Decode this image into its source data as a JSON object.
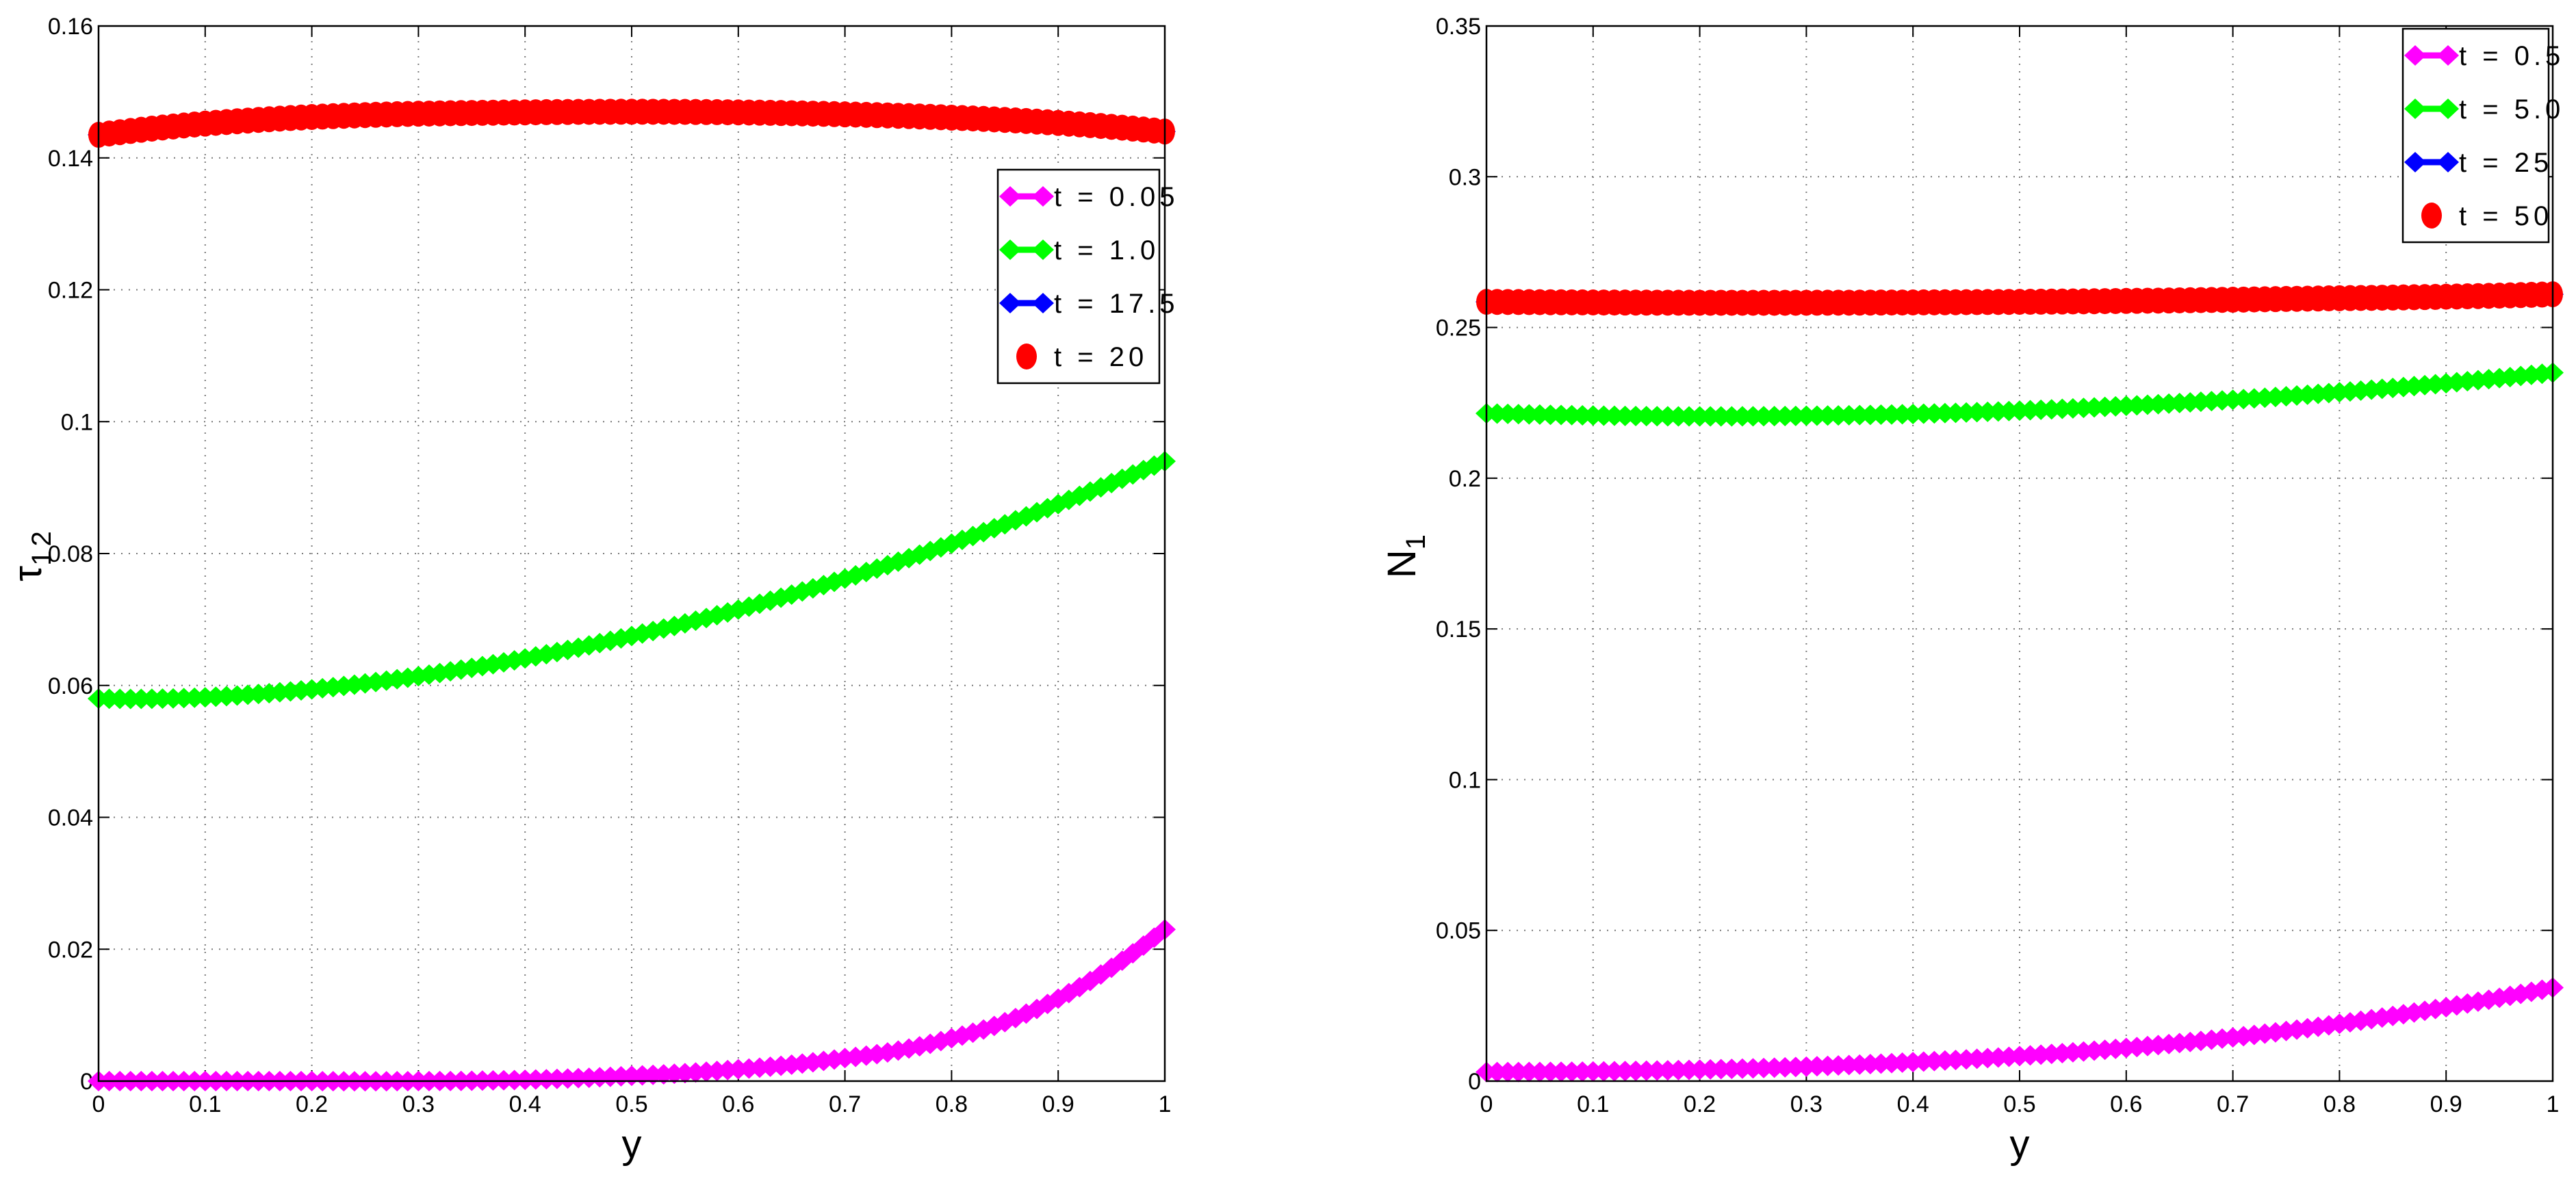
{
  "chart_data": [
    {
      "type": "line",
      "xlabel": "y",
      "ylabel_main": "τ",
      "ylabel_sub": "12",
      "xlim": [
        0,
        1
      ],
      "ylim": [
        0,
        0.16
      ],
      "xticks": [
        0,
        0.1,
        0.2,
        0.3,
        0.4,
        0.5,
        0.6,
        0.7,
        0.8,
        0.9,
        1
      ],
      "xtick_labels": [
        "0",
        "0.1",
        "0.2",
        "0.3",
        "0.4",
        "0.5",
        "0.6",
        "0.7",
        "0.8",
        "0.9",
        "1"
      ],
      "yticks": [
        0,
        0.02,
        0.04,
        0.06,
        0.08,
        0.1,
        0.12,
        0.14,
        0.16
      ],
      "ytick_labels": [
        "0",
        "0.02",
        "0.04",
        "0.06",
        "0.08",
        "0.1",
        "0.12",
        "0.14",
        "0.16"
      ],
      "grid": true,
      "legend_position": "upper-right",
      "x": [
        0,
        0.1,
        0.2,
        0.3,
        0.4,
        0.5,
        0.6,
        0.7,
        0.8,
        0.9,
        1.0
      ],
      "series": [
        {
          "name": "t = 0.05",
          "color": "#ff00ff",
          "marker": "diamond",
          "values": [
            0,
            0,
            0,
            0,
            0.0002,
            0.0008,
            0.0018,
            0.0035,
            0.0065,
            0.0125,
            0.023
          ]
        },
        {
          "name": "t = 1.0",
          "color": "#00ff00",
          "marker": "diamond",
          "values": [
            0.058,
            0.0582,
            0.0594,
            0.0614,
            0.0641,
            0.0675,
            0.0715,
            0.0762,
            0.0815,
            0.0875,
            0.094
          ]
        },
        {
          "name": "t = 17.5",
          "color": "#0000ff",
          "marker": "diamond",
          "values": [
            0.1435,
            0.1452,
            0.1462,
            0.1467,
            0.1469,
            0.147,
            0.1469,
            0.1466,
            0.1461,
            0.1453,
            0.144
          ]
        },
        {
          "name": "t = 20",
          "color": "#ff0000",
          "marker": "circle",
          "values": [
            0.1435,
            0.1452,
            0.1462,
            0.1467,
            0.1469,
            0.147,
            0.1469,
            0.1466,
            0.1461,
            0.1453,
            0.144
          ]
        }
      ]
    },
    {
      "type": "line",
      "xlabel": "y",
      "ylabel_main": "N",
      "ylabel_sub": "1",
      "xlim": [
        0,
        1
      ],
      "ylim": [
        0,
        0.35
      ],
      "xticks": [
        0,
        0.1,
        0.2,
        0.3,
        0.4,
        0.5,
        0.6,
        0.7,
        0.8,
        0.9,
        1
      ],
      "xtick_labels": [
        "0",
        "0.1",
        "0.2",
        "0.3",
        "0.4",
        "0.5",
        "0.6",
        "0.7",
        "0.8",
        "0.9",
        "1"
      ],
      "yticks": [
        0,
        0.05,
        0.1,
        0.15,
        0.2,
        0.25,
        0.3,
        0.35
      ],
      "ytick_labels": [
        "0",
        "0.05",
        "0.1",
        "0.15",
        "0.2",
        "0.25",
        "0.3",
        "0.35"
      ],
      "grid": true,
      "legend_position": "upper-right",
      "x": [
        0,
        0.1,
        0.2,
        0.3,
        0.4,
        0.5,
        0.6,
        0.7,
        0.8,
        0.9,
        1.0
      ],
      "series": [
        {
          "name": "t = 0.5",
          "color": "#ff00ff",
          "marker": "diamond",
          "values": [
            0.003,
            0.0032,
            0.0038,
            0.0048,
            0.0063,
            0.0083,
            0.011,
            0.0145,
            0.019,
            0.0245,
            0.031
          ]
        },
        {
          "name": "t = 5.0",
          "color": "#00ff00",
          "marker": "diamond",
          "values": [
            0.2215,
            0.2208,
            0.2205,
            0.2207,
            0.2213,
            0.2224,
            0.224,
            0.226,
            0.2285,
            0.2315,
            0.235
          ]
        },
        {
          "name": "t = 25",
          "color": "#0000ff",
          "marker": "diamond",
          "values": [
            0.2585,
            0.2583,
            0.2582,
            0.2582,
            0.2583,
            0.2585,
            0.2588,
            0.2592,
            0.2597,
            0.2602,
            0.261
          ]
        },
        {
          "name": "t = 50",
          "color": "#ff0000",
          "marker": "circle",
          "values": [
            0.2585,
            0.2583,
            0.2582,
            0.2582,
            0.2583,
            0.2585,
            0.2588,
            0.2592,
            0.2597,
            0.2602,
            0.261
          ]
        }
      ]
    }
  ]
}
